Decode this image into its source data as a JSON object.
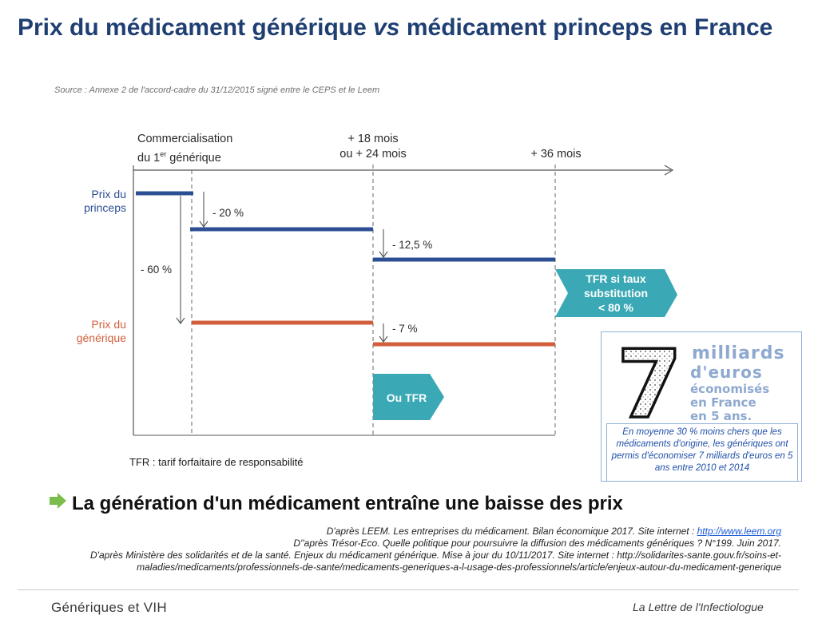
{
  "title": {
    "part1": "Prix du médicament générique ",
    "vs": "vs",
    "part2": " médicament princeps en France"
  },
  "source": "Source : Annexe 2 de l'accord-cadre du 31/12/2015 signé entre le CEPS et le Leem",
  "timeline": {
    "t0_line1": "Commercialisation",
    "t0_line2_a": "du 1",
    "t0_line2_sup": "er",
    "t0_line2_b": " générique",
    "t1_line1": "+ 18 mois",
    "t1_line2": "ou + 24 mois",
    "t2": "+ 36 mois"
  },
  "labels": {
    "princeps_1": "Prix du",
    "princeps_2": "princeps",
    "generique_1": "Prix du",
    "generique_2": "générique",
    "minus20": "- 20 %",
    "minus12": "- 12,5 %",
    "minus60": "- 60 %",
    "minus7": "- 7 %"
  },
  "chevrons": {
    "tfr_taux_1": "TFR si taux",
    "tfr_taux_2": "substitution",
    "tfr_taux_3": "< 80 %",
    "ou_tfr": "Ou TFR"
  },
  "tfr_note": "TFR : tarif forfaitaire de responsabilité",
  "savings": {
    "digit": "7",
    "l1": "milliards",
    "l2": "d'euros",
    "l3": "économisés",
    "l4": "en France",
    "l5": "en 5 ans.",
    "note": "En moyenne 30 % moins chers que les médicaments d'origine, les génériques ont permis d'économiser 7 milliards d'euros en 5 ans entre 2010 et 2014"
  },
  "conclusion": "La génération d'un médicament entraîne une baisse des prix",
  "refs": {
    "r1_text": "D'après LEEM. Les entreprises du médicament. Bilan économique 2017. Site internet : ",
    "r1_link": "http://www.leem.org",
    "r2": "D''après Trésor-Eco. Quelle politique pour poursuivre la diffusion des médicaments génériques ?  N°199. Juin 2017.",
    "r3": "D'après Ministère des solidarités et de la santé. Enjeux du médicament générique. Mise à jour du 10/11/2017. Site internet : http://solidarites-sante.gouv.fr/soins-et-maladies/medicaments/professionnels-de-sante/medicaments-generiques-a-l-usage-des-professionnels/article/enjeux-autour-du-medicament-generique"
  },
  "footer": {
    "left": "Génériques et VIH",
    "right": "La Lettre de l'Infectiologue"
  },
  "colors": {
    "princeps": "#2c4f94",
    "generique": "#d25f3c",
    "chevron": "#3aa9b5",
    "title": "#1f3f73"
  }
}
